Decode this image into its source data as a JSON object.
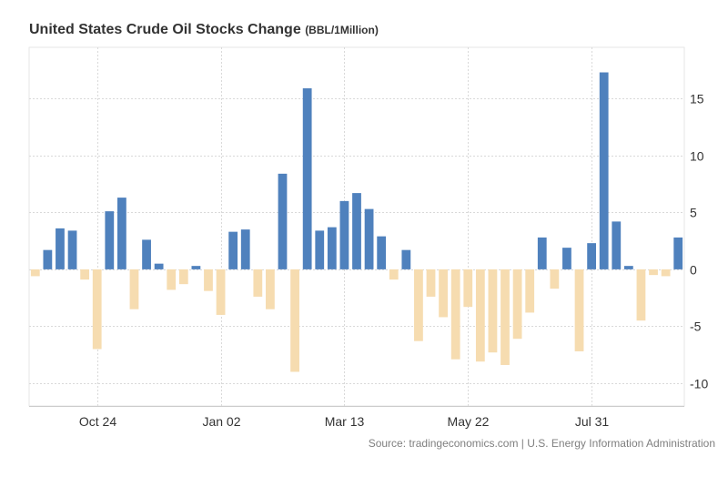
{
  "chart_data": {
    "type": "bar",
    "title": "United States Crude Oil Stocks Change",
    "unit": "(BBL/1Million)",
    "xlabel": "",
    "ylabel": "",
    "ylim": [
      -12,
      19.5
    ],
    "yticks": [
      15,
      10,
      5,
      0,
      -5,
      -10
    ],
    "xtick_labels": [
      {
        "label": "Oct 24",
        "index": 5
      },
      {
        "label": "Jan 02",
        "index": 15
      },
      {
        "label": "Mar 13",
        "index": 25
      },
      {
        "label": "May 22",
        "index": 35
      },
      {
        "label": "Jul 31",
        "index": 45
      }
    ],
    "colors": {
      "positive": "#4f81bd",
      "negative": "#f6dcb0",
      "grid": "#d9d9d9"
    },
    "grid": true,
    "values": [
      -0.6,
      1.7,
      3.6,
      3.4,
      -0.9,
      -7.0,
      5.1,
      6.3,
      -3.5,
      2.6,
      0.5,
      -1.8,
      -1.3,
      0.3,
      -1.9,
      -4.0,
      3.3,
      3.5,
      -2.4,
      -3.5,
      8.4,
      -9.0,
      15.9,
      3.4,
      3.7,
      6.0,
      6.7,
      5.3,
      2.9,
      -0.9,
      1.7,
      -6.3,
      -2.4,
      -4.2,
      -7.9,
      -3.3,
      -8.1,
      -7.3,
      -8.4,
      -6.1,
      -3.8,
      2.8,
      -1.7,
      1.9,
      -7.2,
      2.3,
      17.3,
      4.2,
      0.3,
      -4.5,
      -0.5,
      -0.6,
      2.8
    ]
  },
  "source": "Source: tradingeconomics.com | U.S. Energy Information Administration"
}
